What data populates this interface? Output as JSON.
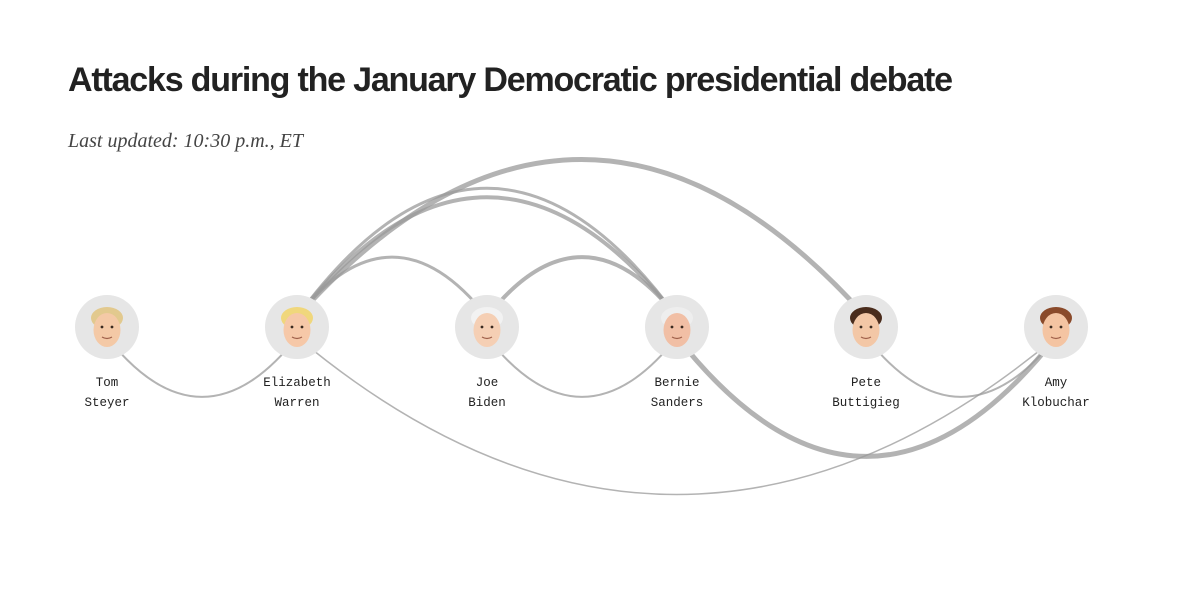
{
  "title": "Attacks during the January Democratic presidential debate",
  "subtitle": "Last updated: 10:30 p.m., ET",
  "colors": {
    "background": "#ffffff",
    "title": "#222222",
    "subtitle": "#444444",
    "arc": "#9a9a9a",
    "avatar_bg": "#e6e6e6"
  },
  "candidates": [
    {
      "id": "steyer",
      "first": "Tom",
      "last": "Steyer",
      "icon": "tom-steyer-portrait",
      "hair": "#e2c98e",
      "skin": "#f4c9a6"
    },
    {
      "id": "warren",
      "first": "Elizabeth",
      "last": "Warren",
      "icon": "elizabeth-warren-portrait",
      "hair": "#f0d77c",
      "skin": "#f6c8a8"
    },
    {
      "id": "biden",
      "first": "Joe",
      "last": "Biden",
      "icon": "joe-biden-portrait",
      "hair": "#f2f2f2",
      "skin": "#f5cfb4"
    },
    {
      "id": "sanders",
      "first": "Bernie",
      "last": "Sanders",
      "icon": "bernie-sanders-portrait",
      "hair": "#eeeeee",
      "skin": "#f1bfa5"
    },
    {
      "id": "buttigieg",
      "first": "Pete",
      "last": "Buttigieg",
      "icon": "pete-buttigieg-portrait",
      "hair": "#4a2c1c",
      "skin": "#f3c7a6"
    },
    {
      "id": "klobuchar",
      "first": "Amy",
      "last": "Klobuchar",
      "icon": "amy-klobuchar-portrait",
      "hair": "#8a4a2a",
      "skin": "#f4c4a2"
    }
  ],
  "attacks": [
    {
      "from": "steyer",
      "to": "warren",
      "side": "below",
      "weight": 2
    },
    {
      "from": "warren",
      "to": "buttigieg",
      "side": "above",
      "weight": 5
    },
    {
      "from": "warren",
      "to": "sanders",
      "side": "above",
      "weight": 4
    },
    {
      "from": "warren",
      "to": "sanders",
      "side": "above",
      "weight": 3
    },
    {
      "from": "warren",
      "to": "biden",
      "side": "above",
      "weight": 3
    },
    {
      "from": "warren",
      "to": "klobuchar",
      "side": "below",
      "weight": 1.5
    },
    {
      "from": "biden",
      "to": "sanders",
      "side": "above",
      "weight": 4
    },
    {
      "from": "biden",
      "to": "sanders",
      "side": "below",
      "weight": 2
    },
    {
      "from": "sanders",
      "to": "klobuchar",
      "side": "below",
      "weight": 5
    },
    {
      "from": "buttigieg",
      "to": "klobuchar",
      "side": "below",
      "weight": 2
    }
  ]
}
